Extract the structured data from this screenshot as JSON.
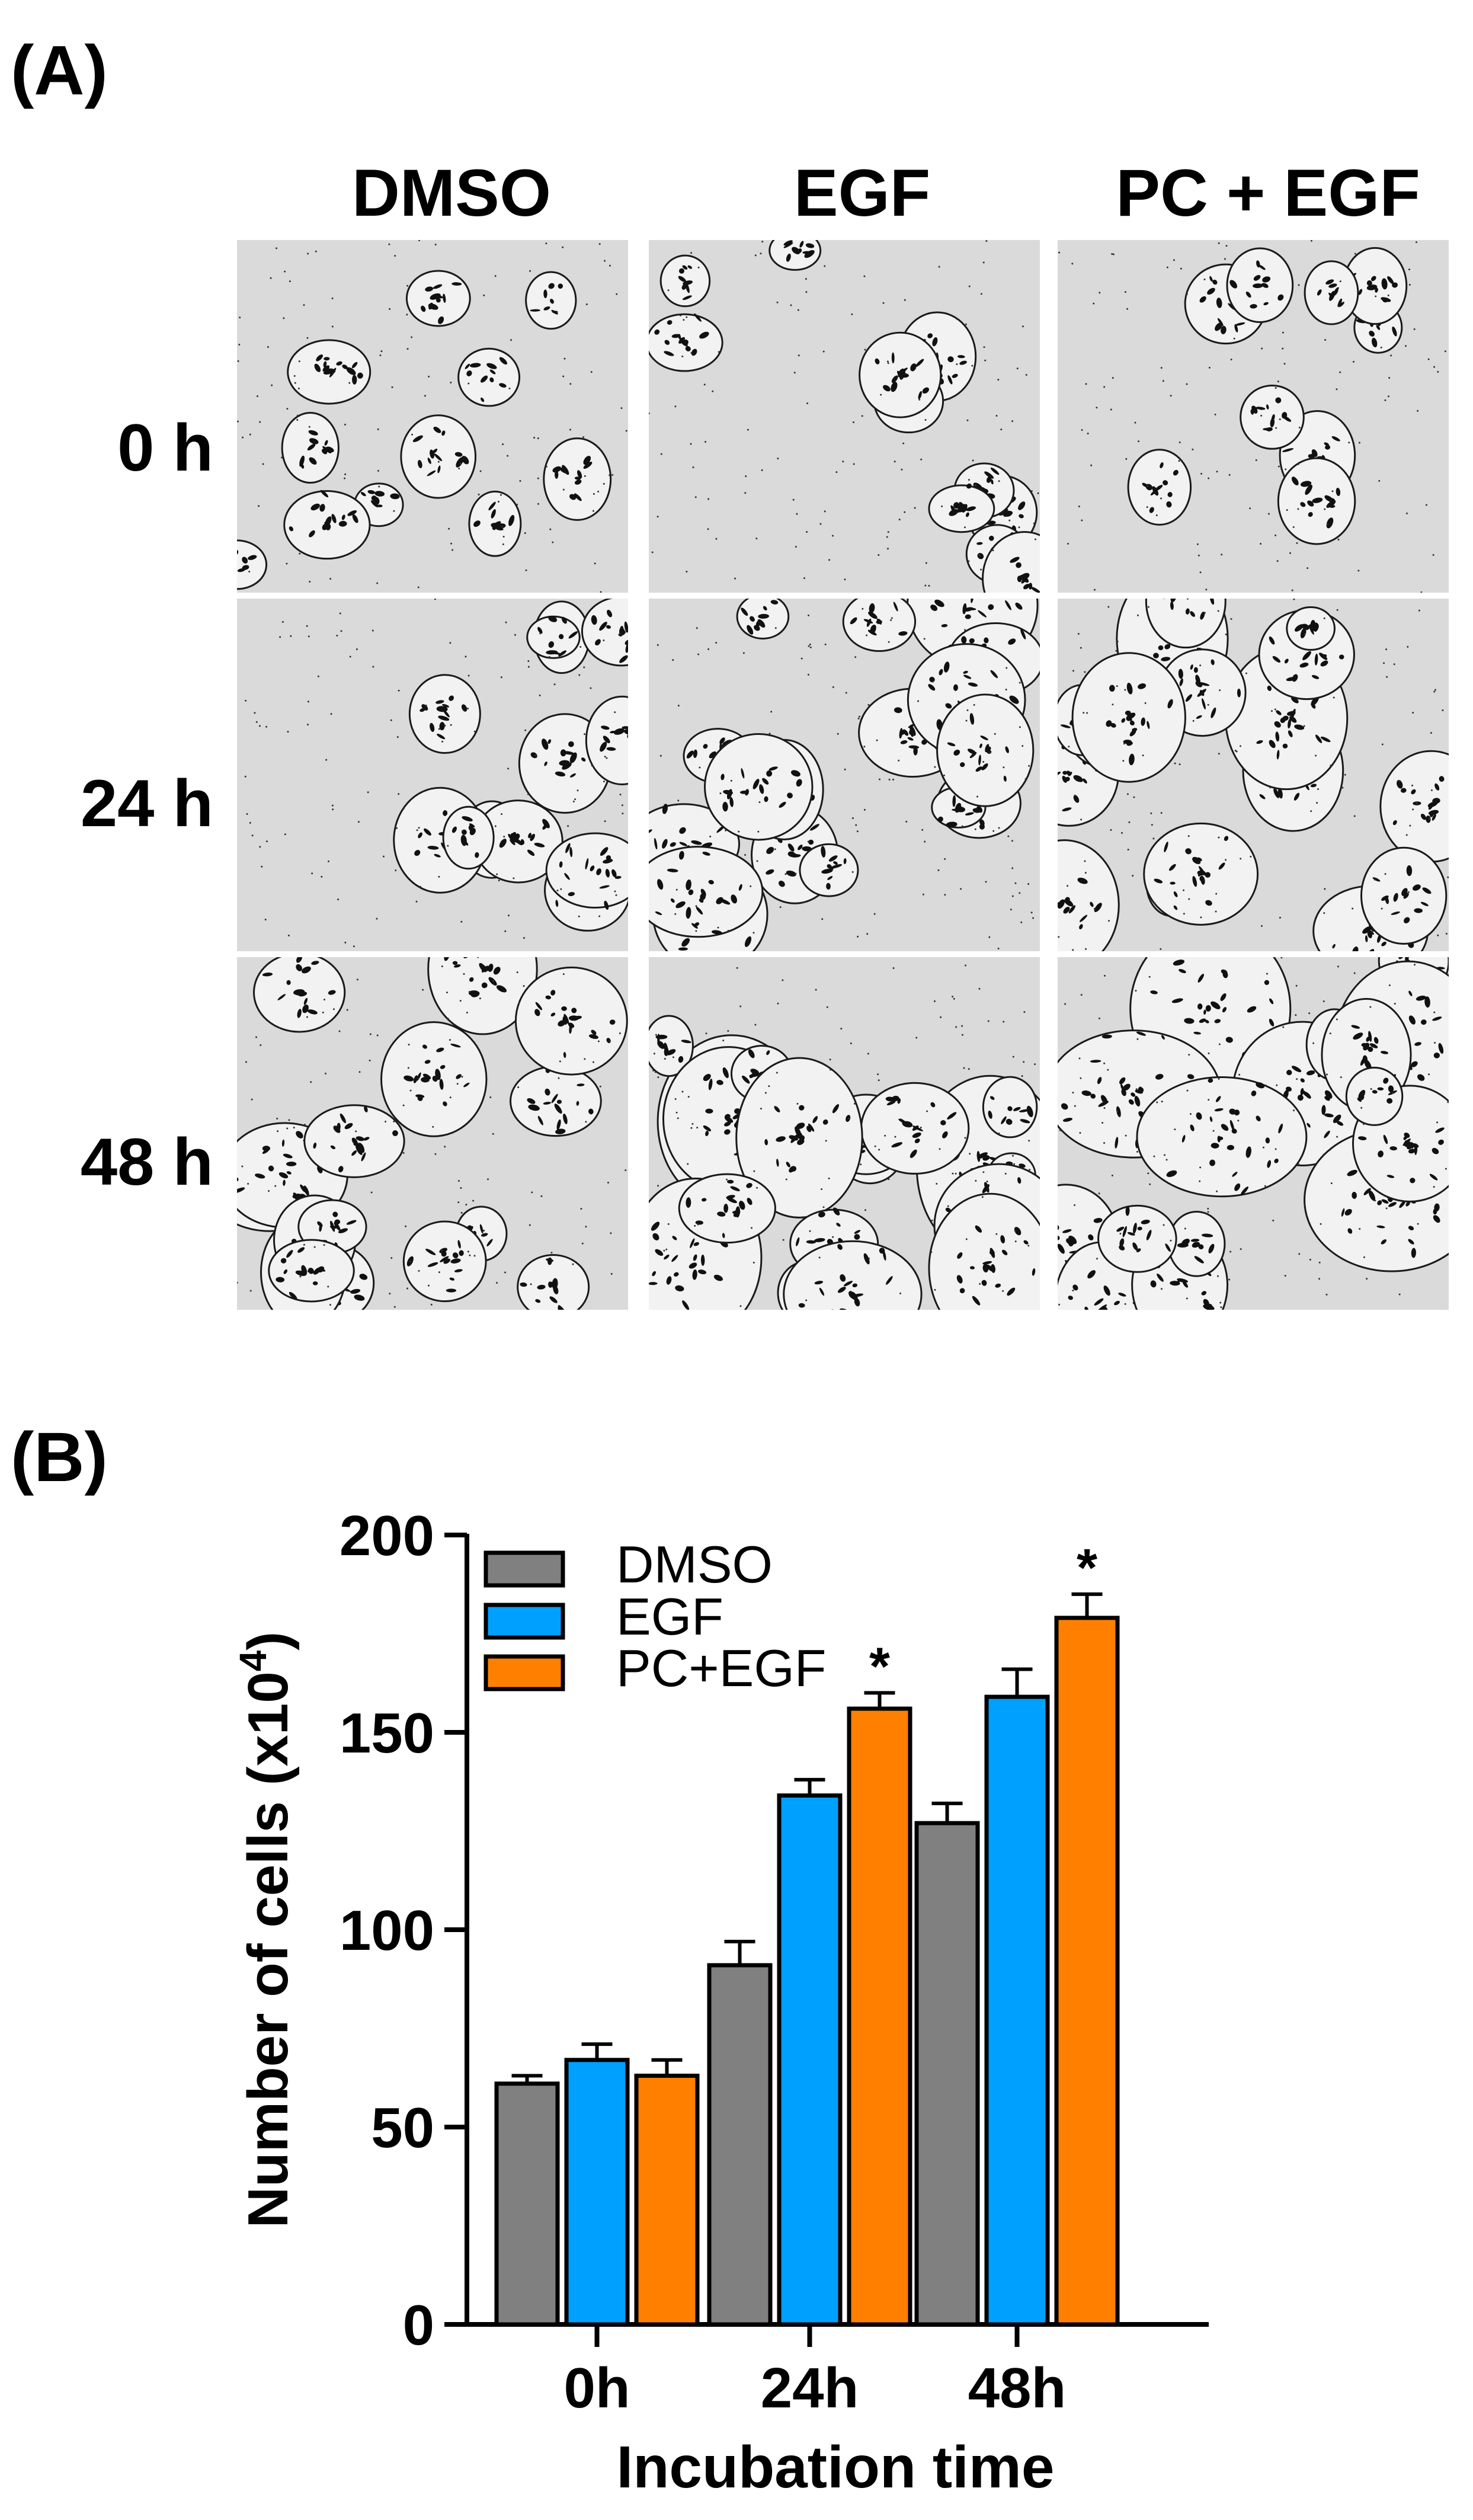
{
  "panel_a": {
    "label": "(A)",
    "columns": [
      "DMSO",
      "EGF",
      "PC + EGF"
    ],
    "rows": [
      "0 h",
      "24 h",
      "48 h"
    ]
  },
  "panel_b": {
    "label": "(B)"
  },
  "chart_data": {
    "type": "bar",
    "categories": [
      "0h",
      "24h",
      "48h"
    ],
    "series": [
      {
        "name": "DMSO",
        "color": "#808080",
        "values": [
          61,
          91,
          127
        ],
        "errors": [
          2,
          6,
          5
        ]
      },
      {
        "name": "EGF",
        "color": "#00a0ff",
        "values": [
          67,
          134,
          159
        ],
        "errors": [
          4,
          4,
          7
        ]
      },
      {
        "name": "PC+EGF",
        "color": "#ff8000",
        "values": [
          63,
          156,
          179
        ],
        "errors": [
          4,
          4,
          6
        ]
      }
    ],
    "significance": [
      {
        "category": "24h",
        "series": "PC+EGF",
        "text": "*"
      },
      {
        "category": "48h",
        "series": "PC+EGF",
        "text": "*"
      }
    ],
    "xlabel": "Incubation time",
    "ylabel": "Number of cells (x10",
    "ylabel_sup": "4",
    "ylabel_end": ")",
    "yticks": [
      0,
      50,
      100,
      150,
      200
    ],
    "ylim": [
      0,
      200
    ],
    "legend_position": "top-left"
  }
}
